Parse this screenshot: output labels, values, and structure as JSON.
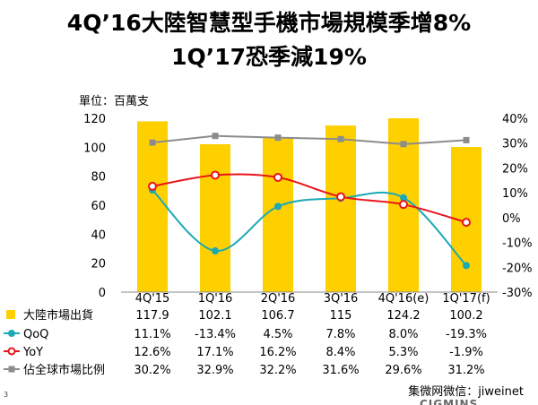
{
  "title_line1": "4Q’16大陸智慧型手機市場規模季增8%",
  "title_line2": "1Q’17恐季減19%",
  "unit_label": "單位：百萬支",
  "page_number": "3",
  "footer_text": "集微网微信：jiweinet",
  "brand_text": "CIGMINS",
  "colors": {
    "bar": "#FFD000",
    "qoq": "#1BA9B5",
    "yoy": "#E8141B",
    "share": "#8C8C8C"
  },
  "chart_data": {
    "type": "bar",
    "categories": [
      "4Q'15",
      "1Q'16",
      "2Q'16",
      "3Q'16",
      "4Q'16(e)",
      "1Q'17(f)"
    ],
    "left_axis": {
      "ylim": [
        0,
        120
      ],
      "ticks": [
        "0",
        "20",
        "40",
        "60",
        "80",
        "100",
        "120"
      ]
    },
    "right_axis": {
      "ylim": [
        -30,
        40
      ],
      "ticks": [
        "-30%",
        "-20%",
        "-10%",
        "0%",
        "10%",
        "20%",
        "30%",
        "40%"
      ]
    },
    "series": [
      {
        "name": "大陸市場出貨",
        "type": "bar",
        "axis": "left",
        "values": [
          117.9,
          102.1,
          106.7,
          115,
          124.2,
          100.2
        ],
        "labels": [
          "117.9",
          "102.1",
          "106.7",
          "115",
          "124.2",
          "100.2"
        ]
      },
      {
        "name": "QoQ",
        "type": "line",
        "smooth": true,
        "marker": "circle",
        "axis": "right",
        "values": [
          11.1,
          -13.4,
          4.5,
          7.8,
          8.0,
          -19.3
        ],
        "labels": [
          "11.1%",
          "-13.4%",
          "4.5%",
          "7.8%",
          "8.0%",
          "-19.3%"
        ]
      },
      {
        "name": "YoY",
        "type": "line",
        "smooth": true,
        "marker": "open-circle",
        "axis": "right",
        "values": [
          12.6,
          17.1,
          16.2,
          8.4,
          5.3,
          -1.9
        ],
        "labels": [
          "12.6%",
          "17.1%",
          "16.2%",
          "8.4%",
          "5.3%",
          "-1.9%"
        ]
      },
      {
        "name": "佔全球市場比例",
        "type": "line",
        "smooth": false,
        "marker": "square",
        "axis": "right",
        "values": [
          30.2,
          32.9,
          32.2,
          31.6,
          29.6,
          31.2
        ],
        "labels": [
          "30.2%",
          "32.9%",
          "32.2%",
          "31.6%",
          "29.6%",
          "31.2%"
        ]
      }
    ],
    "data_table": true
  }
}
